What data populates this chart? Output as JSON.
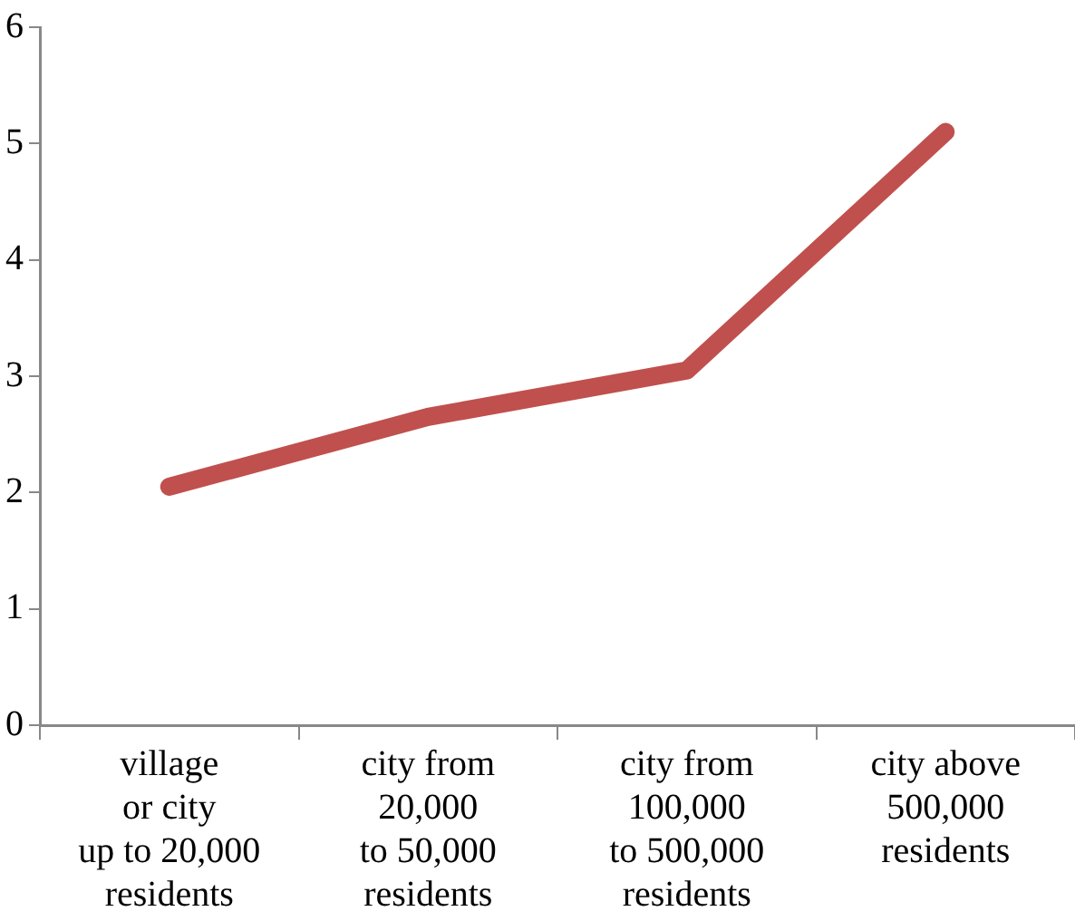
{
  "chart_data": {
    "type": "line",
    "categories": [
      "village\nor city\nup to 20,000\nresidents",
      "city from\n20,000\nto 50,000\nresidents",
      "city from\n100,000\nto 500,000\nresidents",
      "city above\n500,000\nresidents"
    ],
    "series": [
      {
        "color": "#c0504d",
        "values": [
          2.05,
          2.65,
          3.05,
          5.1
        ]
      }
    ],
    "ylim": [
      0,
      6
    ],
    "yticks": [
      0,
      1,
      2,
      3,
      4,
      5,
      6
    ],
    "grid": false,
    "legend": false,
    "marker": "none",
    "line_style": "solid"
  }
}
